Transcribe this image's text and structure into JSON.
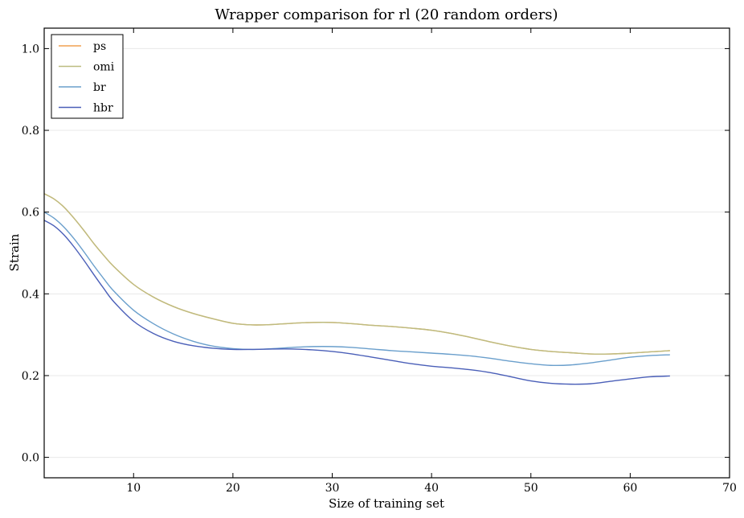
{
  "chart_data": {
    "type": "line",
    "title": "Wrapper comparison for rl (20 random orders)",
    "xlabel": "Size of training set",
    "ylabel": "Strain",
    "xlim": [
      1,
      70
    ],
    "ylim": [
      -0.05,
      1.05
    ],
    "xticks": [
      10,
      20,
      30,
      40,
      50,
      60,
      70
    ],
    "yticks": [
      0.0,
      0.2,
      0.4,
      0.6,
      0.8,
      1.0
    ],
    "xtick_labels": [
      "10",
      "20",
      "30",
      "40",
      "50",
      "60",
      "70"
    ],
    "ytick_labels": [
      "0.0",
      "0.2",
      "0.4",
      "0.6",
      "0.8",
      "1.0"
    ],
    "grid": "horizontal",
    "legend_position": "top-left",
    "x": [
      1,
      2,
      3,
      4,
      5,
      6,
      7,
      8,
      10,
      12,
      14,
      16,
      18,
      20,
      22,
      24,
      26,
      28,
      30,
      32,
      34,
      36,
      38,
      40,
      42,
      44,
      46,
      48,
      50,
      52,
      54,
      56,
      58,
      60,
      62,
      64
    ],
    "series": [
      {
        "name": "ps",
        "color": "#f0a050",
        "values": [
          0.645,
          0.632,
          0.612,
          0.585,
          0.555,
          0.523,
          0.494,
          0.467,
          0.423,
          0.392,
          0.369,
          0.352,
          0.339,
          0.328,
          0.324,
          0.325,
          0.328,
          0.33,
          0.33,
          0.327,
          0.323,
          0.32,
          0.316,
          0.311,
          0.303,
          0.293,
          0.282,
          0.272,
          0.264,
          0.259,
          0.256,
          0.253,
          0.253,
          0.255,
          0.258,
          0.261
        ]
      },
      {
        "name": "omi",
        "color": "#bcbc80",
        "values": [
          0.645,
          0.632,
          0.612,
          0.585,
          0.555,
          0.523,
          0.494,
          0.467,
          0.423,
          0.392,
          0.369,
          0.352,
          0.339,
          0.328,
          0.324,
          0.325,
          0.328,
          0.33,
          0.33,
          0.327,
          0.323,
          0.32,
          0.316,
          0.311,
          0.303,
          0.293,
          0.282,
          0.272,
          0.264,
          0.259,
          0.256,
          0.253,
          0.253,
          0.255,
          0.258,
          0.261
        ]
      },
      {
        "name": "br",
        "color": "#6a9fcc",
        "values": [
          0.6,
          0.585,
          0.563,
          0.535,
          0.503,
          0.469,
          0.437,
          0.407,
          0.36,
          0.327,
          0.302,
          0.284,
          0.272,
          0.266,
          0.264,
          0.266,
          0.269,
          0.271,
          0.271,
          0.269,
          0.265,
          0.261,
          0.258,
          0.255,
          0.252,
          0.248,
          0.242,
          0.235,
          0.229,
          0.225,
          0.226,
          0.231,
          0.238,
          0.245,
          0.249,
          0.251
        ]
      },
      {
        "name": "hbr",
        "color": "#4a5fb8",
        "values": [
          0.58,
          0.566,
          0.544,
          0.515,
          0.482,
          0.447,
          0.413,
          0.381,
          0.333,
          0.303,
          0.284,
          0.273,
          0.267,
          0.264,
          0.264,
          0.265,
          0.265,
          0.263,
          0.259,
          0.253,
          0.245,
          0.237,
          0.229,
          0.223,
          0.219,
          0.214,
          0.207,
          0.197,
          0.187,
          0.181,
          0.179,
          0.18,
          0.186,
          0.192,
          0.197,
          0.199
        ]
      }
    ]
  }
}
